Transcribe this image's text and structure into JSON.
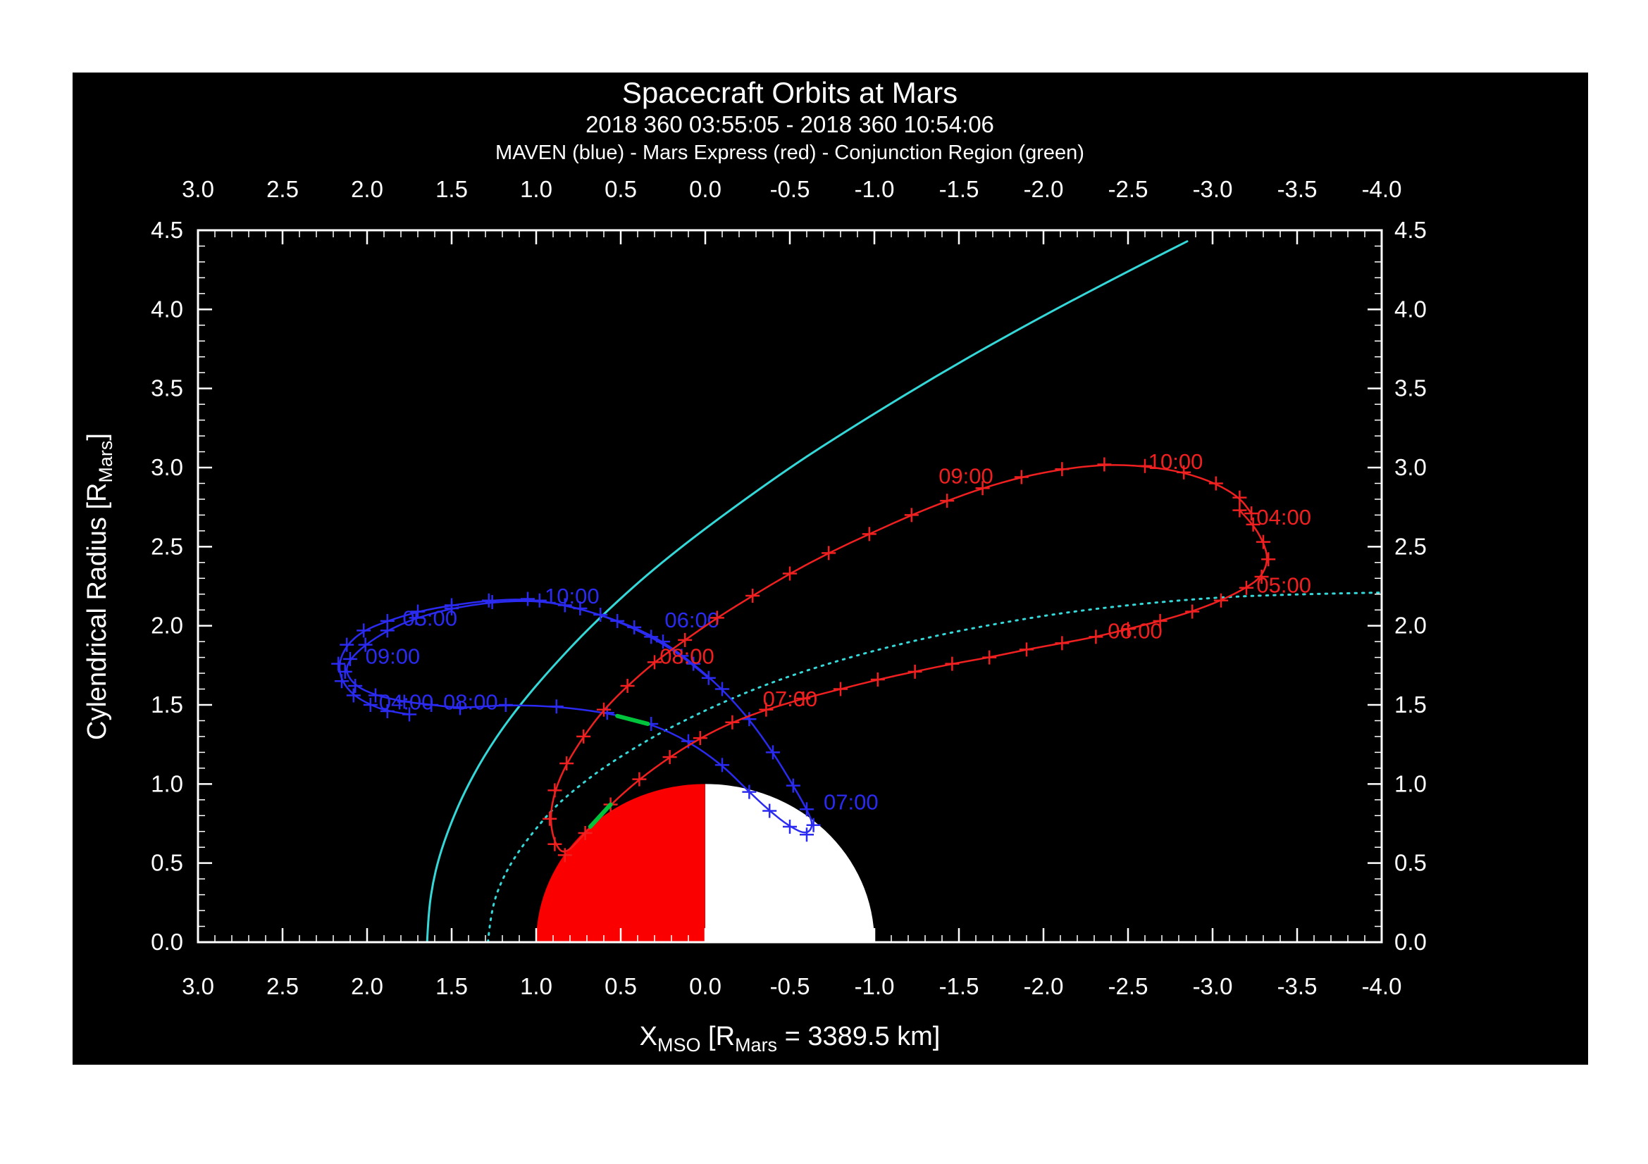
{
  "title": "Spacecraft Orbits at Mars",
  "subtitle": "2018 360 03:55:05 - 2018 360 10:54:06",
  "legend_line": "MAVEN (blue) - Mars Express (red) - Conjunction Region (green)",
  "colors": {
    "panel": "#000000",
    "background": "#ffffff",
    "frame": "#ffffff",
    "text": "#ffffff",
    "maven_blue": "#2a2af0",
    "mex_red": "#f02020",
    "boundary_cyan": "#35d8d8",
    "conjunction_green": "#00c43c",
    "mars_day": "#fb0000",
    "mars_night": "#ffffff"
  },
  "axes": {
    "x": {
      "title": {
        "pre": "X",
        "sub1": "MSO",
        "mid": " [R",
        "sub2": "Mars",
        "post": " = 3389.5 km]"
      },
      "range": [
        3.0,
        -4.0
      ],
      "ticks": [
        {
          "v": 3.0,
          "label": "3.0"
        },
        {
          "v": 2.5,
          "label": "2.5"
        },
        {
          "v": 2.0,
          "label": "2.0"
        },
        {
          "v": 1.5,
          "label": "1.5"
        },
        {
          "v": 1.0,
          "label": "1.0"
        },
        {
          "v": 0.5,
          "label": "0.5"
        },
        {
          "v": 0.0,
          "label": "0.0"
        },
        {
          "v": -0.5,
          "label": "-0.5"
        },
        {
          "v": -1.0,
          "label": "-1.0"
        },
        {
          "v": -1.5,
          "label": "-1.5"
        },
        {
          "v": -2.0,
          "label": "-2.0"
        },
        {
          "v": -2.5,
          "label": "-2.5"
        },
        {
          "v": -3.0,
          "label": "-3.0"
        },
        {
          "v": -3.5,
          "label": "-3.5"
        },
        {
          "v": -4.0,
          "label": "-4.0"
        }
      ]
    },
    "y": {
      "title": {
        "pre": "Cylendrical Radius [R",
        "sub": "Mars",
        "post": "]"
      },
      "range": [
        0.0,
        4.5
      ],
      "ticks": [
        {
          "v": 0.0,
          "label": "0.0"
        },
        {
          "v": 0.5,
          "label": "0.5"
        },
        {
          "v": 1.0,
          "label": "1.0"
        },
        {
          "v": 1.5,
          "label": "1.5"
        },
        {
          "v": 2.0,
          "label": "2.0"
        },
        {
          "v": 2.5,
          "label": "2.5"
        },
        {
          "v": 3.0,
          "label": "3.0"
        },
        {
          "v": 3.5,
          "label": "3.5"
        },
        {
          "v": 4.0,
          "label": "4.0"
        },
        {
          "v": 4.5,
          "label": "4.5"
        }
      ]
    }
  },
  "chart_data": {
    "type": "line",
    "title": "Spacecraft Orbits at Mars",
    "time_window": "2018 360 03:55:05 - 2018 360 10:54:06",
    "x_axis": {
      "label": "X_MSO [R_Mars = 3389.5 km]",
      "range": [
        3.0,
        -4.0
      ]
    },
    "y_axis": {
      "label": "Cylendrical Radius [R_Mars]",
      "range": [
        0.0,
        4.5
      ]
    },
    "mars": {
      "center": [
        0,
        0
      ],
      "radius": 1.0,
      "dayside_color": "#fb0000",
      "nightside_color": "#ffffff"
    },
    "series": [
      {
        "id": "cyan-solid-boundary",
        "name": "Boundary (cyan solid)",
        "color": "#35d8d8",
        "style": "solid",
        "width": 3,
        "markers": false,
        "points": [
          [
            1.645,
            0.0
          ],
          [
            1.637,
            0.18
          ],
          [
            1.614,
            0.36
          ],
          [
            1.574,
            0.54
          ],
          [
            1.513,
            0.73
          ],
          [
            1.429,
            0.94
          ],
          [
            1.313,
            1.17
          ],
          [
            1.156,
            1.42
          ],
          [
            0.94,
            1.7
          ],
          [
            0.64,
            2.04
          ],
          [
            0.21,
            2.45
          ],
          [
            -0.44,
            2.96
          ],
          [
            -0.89,
            3.27
          ],
          [
            -1.46,
            3.64
          ],
          [
            -2.05,
            3.99
          ],
          [
            -2.59,
            4.29
          ],
          [
            -2.85,
            4.43
          ]
        ]
      },
      {
        "id": "cyan-dotted-boundary",
        "name": "Boundary (cyan dotted)",
        "color": "#35d8d8",
        "style": "dotted",
        "width": 3,
        "markers": false,
        "points": [
          [
            1.285,
            0.0
          ],
          [
            1.269,
            0.18
          ],
          [
            1.215,
            0.37
          ],
          [
            1.111,
            0.57
          ],
          [
            0.924,
            0.82
          ],
          [
            0.78,
            0.96
          ],
          [
            0.582,
            1.12
          ],
          [
            0.306,
            1.3
          ],
          [
            0.126,
            1.4
          ],
          [
            -0.09,
            1.51
          ],
          [
            -0.36,
            1.63
          ],
          [
            -0.69,
            1.75
          ],
          [
            -1.09,
            1.87
          ],
          [
            -1.59,
            1.99
          ],
          [
            -2.21,
            2.1
          ],
          [
            -2.99,
            2.18
          ],
          [
            -3.54,
            2.2
          ],
          [
            -4.0,
            2.21
          ]
        ]
      },
      {
        "id": "maven",
        "name": "MAVEN",
        "color": "#2a2af0",
        "style": "solid",
        "width": 2.5,
        "markers": true,
        "points": [
          [
            1.75,
            1.44
          ],
          [
            1.88,
            1.46
          ],
          [
            1.98,
            1.5
          ],
          [
            2.08,
            1.56
          ],
          [
            2.15,
            1.65
          ],
          [
            2.17,
            1.76
          ],
          [
            2.12,
            1.88
          ],
          [
            2.02,
            1.97
          ],
          [
            1.88,
            2.03
          ],
          [
            1.7,
            2.09
          ],
          [
            1.5,
            2.13
          ],
          [
            1.28,
            2.16
          ],
          [
            1.05,
            2.17
          ],
          [
            0.83,
            2.13
          ],
          [
            0.62,
            2.07
          ],
          [
            0.42,
            1.99
          ],
          [
            0.25,
            1.9
          ],
          [
            0.07,
            1.76
          ],
          [
            -0.1,
            1.6
          ],
          [
            -0.26,
            1.41
          ],
          [
            -0.4,
            1.2
          ],
          [
            -0.52,
            0.99
          ],
          [
            -0.6,
            0.84
          ],
          [
            -0.64,
            0.74
          ],
          [
            -0.6,
            0.68
          ],
          [
            -0.5,
            0.73
          ],
          [
            -0.38,
            0.83
          ],
          [
            -0.26,
            0.95
          ],
          [
            -0.1,
            1.12
          ],
          [
            0.1,
            1.27
          ],
          [
            0.32,
            1.38
          ],
          [
            0.58,
            1.45
          ],
          [
            0.88,
            1.49
          ],
          [
            1.18,
            1.5
          ],
          [
            1.45,
            1.48
          ],
          [
            1.62,
            1.5
          ],
          [
            1.78,
            1.52
          ],
          [
            1.95,
            1.56
          ],
          [
            2.07,
            1.62
          ],
          [
            2.13,
            1.71
          ],
          [
            2.1,
            1.79
          ],
          [
            2.01,
            1.88
          ],
          [
            1.88,
            1.97
          ],
          [
            1.71,
            2.05
          ],
          [
            1.5,
            2.11
          ],
          [
            1.26,
            2.15
          ],
          [
            0.98,
            2.16
          ],
          [
            0.74,
            2.11
          ],
          [
            0.52,
            2.03
          ],
          [
            0.32,
            1.93
          ],
          [
            0.14,
            1.81
          ],
          [
            -0.02,
            1.67
          ]
        ],
        "time_labels": [
          {
            "x": 1.93,
            "y": 1.47,
            "text": "04:00"
          },
          {
            "x": 1.79,
            "y": 2.0,
            "text": "05:00"
          },
          {
            "x": 0.24,
            "y": 1.99,
            "text": "06:00"
          },
          {
            "x": -0.7,
            "y": 0.84,
            "text": "07:00"
          },
          {
            "x": 1.55,
            "y": 1.47,
            "text": "08:00"
          },
          {
            "x": 2.01,
            "y": 1.76,
            "text": "09:00"
          },
          {
            "x": 0.95,
            "y": 2.14,
            "text": "10:00"
          }
        ]
      },
      {
        "id": "mars-express",
        "name": "Mars Express",
        "color": "#f02020",
        "style": "solid",
        "width": 2.5,
        "markers": true,
        "points": [
          [
            -3.16,
            2.73
          ],
          [
            -3.24,
            2.64
          ],
          [
            -3.3,
            2.53
          ],
          [
            -3.33,
            2.42
          ],
          [
            -3.29,
            2.31
          ],
          [
            -3.2,
            2.24
          ],
          [
            -3.05,
            2.16
          ],
          [
            -2.88,
            2.09
          ],
          [
            -2.69,
            2.03
          ],
          [
            -2.5,
            1.98
          ],
          [
            -2.31,
            1.93
          ],
          [
            -2.11,
            1.89
          ],
          [
            -1.9,
            1.85
          ],
          [
            -1.68,
            1.8
          ],
          [
            -1.46,
            1.76
          ],
          [
            -1.24,
            1.71
          ],
          [
            -1.02,
            1.66
          ],
          [
            -0.8,
            1.6
          ],
          [
            -0.58,
            1.54
          ],
          [
            -0.36,
            1.47
          ],
          [
            -0.16,
            1.39
          ],
          [
            0.03,
            1.29
          ],
          [
            0.21,
            1.17
          ],
          [
            0.39,
            1.03
          ],
          [
            0.56,
            0.87
          ],
          [
            0.71,
            0.69
          ],
          [
            0.83,
            0.55
          ],
          [
            0.89,
            0.62
          ],
          [
            0.92,
            0.78
          ],
          [
            0.89,
            0.96
          ],
          [
            0.82,
            1.13
          ],
          [
            0.72,
            1.3
          ],
          [
            0.6,
            1.47
          ],
          [
            0.46,
            1.62
          ],
          [
            0.3,
            1.77
          ],
          [
            0.12,
            1.91
          ],
          [
            -0.07,
            2.05
          ],
          [
            -0.28,
            2.19
          ],
          [
            -0.5,
            2.33
          ],
          [
            -0.73,
            2.46
          ],
          [
            -0.97,
            2.58
          ],
          [
            -1.22,
            2.7
          ],
          [
            -1.43,
            2.79
          ],
          [
            -1.64,
            2.87
          ],
          [
            -1.87,
            2.94
          ],
          [
            -2.11,
            2.99
          ],
          [
            -2.36,
            3.02
          ],
          [
            -2.6,
            3.01
          ],
          [
            -2.83,
            2.97
          ],
          [
            -3.02,
            2.9
          ],
          [
            -3.16,
            2.81
          ],
          [
            -3.23,
            2.71
          ]
        ],
        "time_labels": [
          {
            "x": -3.26,
            "y": 2.64,
            "text": "04:00"
          },
          {
            "x": -3.26,
            "y": 2.21,
            "text": "05:00"
          },
          {
            "x": -2.38,
            "y": 1.92,
            "text": "06:00"
          },
          {
            "x": -0.34,
            "y": 1.49,
            "text": "07:00"
          },
          {
            "x": 0.27,
            "y": 1.76,
            "text": "08:00"
          },
          {
            "x": -1.38,
            "y": 2.9,
            "text": "09:00"
          },
          {
            "x": -2.62,
            "y": 2.99,
            "text": "10:00"
          }
        ]
      },
      {
        "id": "conjunction",
        "name": "Conjunction Region",
        "color": "#00c43c",
        "width": 6,
        "segments": [
          [
            [
              0.34,
              1.38
            ],
            [
              0.52,
              1.43
            ]
          ],
          [
            [
              0.56,
              0.87
            ],
            [
              0.68,
              0.73
            ]
          ]
        ]
      }
    ]
  }
}
